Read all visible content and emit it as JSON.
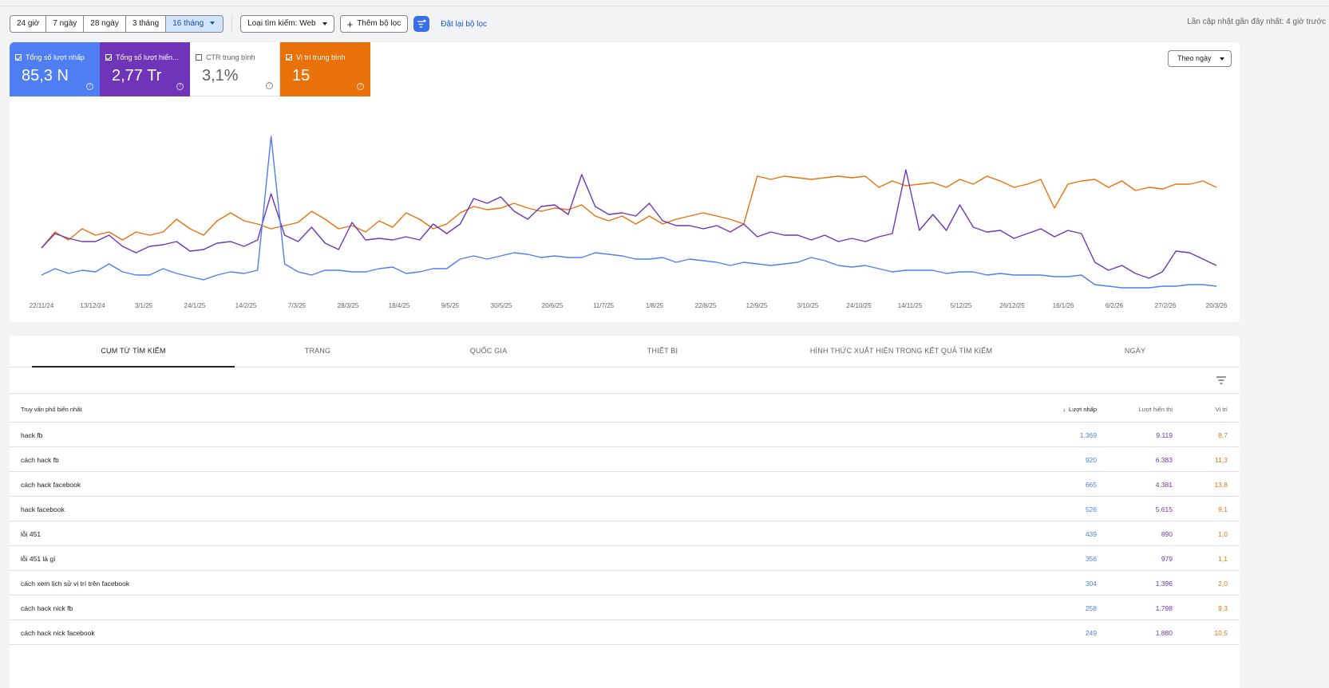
{
  "filters": {
    "date_ranges": [
      "24 giờ",
      "7 ngày",
      "28 ngày",
      "3 tháng",
      "16 tháng"
    ],
    "active_range": "16 tháng",
    "search_type": "Loại tìm kiếm: Web",
    "add_filter": "Thêm bộ lọc",
    "reset": "Đặt lại bộ lọc",
    "last_update": "Lần cập nhật gần đây nhất: 4 giờ trước"
  },
  "metrics": [
    {
      "label": "Tổng số lượt nhấp",
      "value": "85,3 N",
      "checked": true,
      "color": "#4e7ef2"
    },
    {
      "label": "Tổng số lượt hiển...",
      "value": "2,77 Tr",
      "checked": true,
      "color": "#6e35b8"
    },
    {
      "label": "CTR trung bình",
      "value": "3,1%",
      "checked": false,
      "color": "#5f6368"
    },
    {
      "label": "Vị trí trung bình",
      "value": "15",
      "checked": true,
      "color": "#e8710a"
    }
  ],
  "granularity": "Theo ngày",
  "chart_data": {
    "type": "line",
    "x_labels": [
      "22/11/24",
      "13/12/24",
      "3/1/25",
      "24/1/25",
      "14/2/25",
      "7/3/25",
      "28/3/25",
      "18/4/25",
      "9/5/25",
      "30/5/25",
      "20/6/25",
      "11/7/25",
      "1/8/25",
      "22/8/25",
      "12/9/25",
      "3/10/25",
      "24/10/25",
      "14/11/25",
      "5/12/25",
      "26/12/25",
      "16/1/26",
      "6/2/26",
      "27/2/26",
      "20/3/26"
    ],
    "series": [
      {
        "name": "Tổng số lượt nhấp",
        "color": "#4e7ef2",
        "values": [
          0.13,
          0.17,
          0.14,
          0.16,
          0.15,
          0.2,
          0.15,
          0.13,
          0.13,
          0.17,
          0.14,
          0.12,
          0.1,
          0.13,
          0.15,
          0.14,
          0.16,
          1.0,
          0.2,
          0.15,
          0.13,
          0.16,
          0.16,
          0.15,
          0.15,
          0.17,
          0.18,
          0.14,
          0.15,
          0.17,
          0.17,
          0.23,
          0.25,
          0.23,
          0.25,
          0.27,
          0.26,
          0.24,
          0.25,
          0.24,
          0.24,
          0.27,
          0.26,
          0.25,
          0.23,
          0.23,
          0.24,
          0.21,
          0.23,
          0.22,
          0.21,
          0.19,
          0.21,
          0.2,
          0.19,
          0.2,
          0.21,
          0.24,
          0.22,
          0.19,
          0.18,
          0.19,
          0.17,
          0.15,
          0.16,
          0.16,
          0.16,
          0.14,
          0.15,
          0.15,
          0.13,
          0.14,
          0.13,
          0.13,
          0.13,
          0.12,
          0.12,
          0.13,
          0.07,
          0.06,
          0.05,
          0.05,
          0.05,
          0.06,
          0.06,
          0.07,
          0.07,
          0.06
        ]
      },
      {
        "name": "Tổng số lượt hiển thị",
        "color": "#6e35b8",
        "values": [
          0.3,
          0.39,
          0.36,
          0.34,
          0.34,
          0.38,
          0.31,
          0.27,
          0.31,
          0.32,
          0.34,
          0.28,
          0.29,
          0.33,
          0.34,
          0.31,
          0.35,
          0.64,
          0.38,
          0.34,
          0.43,
          0.33,
          0.29,
          0.46,
          0.35,
          0.36,
          0.35,
          0.37,
          0.35,
          0.45,
          0.39,
          0.45,
          0.61,
          0.58,
          0.62,
          0.53,
          0.48,
          0.56,
          0.57,
          0.51,
          0.76,
          0.56,
          0.51,
          0.52,
          0.5,
          0.58,
          0.47,
          0.44,
          0.44,
          0.42,
          0.44,
          0.4,
          0.45,
          0.37,
          0.4,
          0.38,
          0.38,
          0.35,
          0.38,
          0.34,
          0.36,
          0.34,
          0.37,
          0.39,
          0.79,
          0.41,
          0.51,
          0.41,
          0.57,
          0.43,
          0.4,
          0.41,
          0.36,
          0.39,
          0.42,
          0.37,
          0.41,
          0.39,
          0.21,
          0.16,
          0.19,
          0.14,
          0.11,
          0.15,
          0.28,
          0.27,
          0.23,
          0.19
        ]
      },
      {
        "name": "Vị trí trung bình",
        "color": "#e8710a",
        "values": [
          0.3,
          0.4,
          0.35,
          0.42,
          0.38,
          0.4,
          0.35,
          0.4,
          0.38,
          0.4,
          0.48,
          0.42,
          0.38,
          0.47,
          0.52,
          0.47,
          0.45,
          0.42,
          0.44,
          0.46,
          0.53,
          0.48,
          0.42,
          0.44,
          0.4,
          0.47,
          0.43,
          0.52,
          0.48,
          0.42,
          0.45,
          0.52,
          0.56,
          0.54,
          0.55,
          0.58,
          0.55,
          0.53,
          0.55,
          0.54,
          0.57,
          0.5,
          0.47,
          0.5,
          0.45,
          0.5,
          0.45,
          0.48,
          0.5,
          0.52,
          0.5,
          0.48,
          0.45,
          0.75,
          0.73,
          0.75,
          0.74,
          0.73,
          0.74,
          0.75,
          0.74,
          0.75,
          0.68,
          0.72,
          0.69,
          0.7,
          0.71,
          0.68,
          0.73,
          0.7,
          0.75,
          0.72,
          0.68,
          0.7,
          0.73,
          0.55,
          0.7,
          0.72,
          0.73,
          0.68,
          0.72,
          0.66,
          0.68,
          0.67,
          0.7,
          0.7,
          0.72,
          0.68
        ]
      }
    ]
  },
  "tabs": [
    "CỤM TỪ TÌM KIẾM",
    "TRANG",
    "QUỐC GIA",
    "THIẾT BỊ",
    "HÌNH THỨC XUẤT HIỆN TRONG KẾT QUẢ TÌM KIẾM",
    "NGÀY"
  ],
  "table": {
    "headers": {
      "query": "Truy vấn phổ biến nhất",
      "clicks": "Lượt nhấp",
      "impressions": "Lượt hiển thị",
      "position": "Vị trí"
    },
    "rows": [
      {
        "q": "hack fb",
        "c": "1.369",
        "i": "9.119",
        "p": "8,7"
      },
      {
        "q": "cách hack fb",
        "c": "920",
        "i": "6.383",
        "p": "11,3"
      },
      {
        "q": "cách hack facebook",
        "c": "665",
        "i": "4.381",
        "p": "13,8"
      },
      {
        "q": "hack facebook",
        "c": "526",
        "i": "5.615",
        "p": "9,1"
      },
      {
        "q": "lỗi 451",
        "c": "439",
        "i": "890",
        "p": "1,0"
      },
      {
        "q": "lỗi 451 là gì",
        "c": "356",
        "i": "979",
        "p": "1,1"
      },
      {
        "q": "cách xem lịch sử vị trí trên facebook",
        "c": "304",
        "i": "1.396",
        "p": "2,0"
      },
      {
        "q": "cách hack nick fb",
        "c": "258",
        "i": "1.798",
        "p": "9,3"
      },
      {
        "q": "cách hack nick facebook",
        "c": "249",
        "i": "1.880",
        "p": "10,5"
      }
    ]
  }
}
